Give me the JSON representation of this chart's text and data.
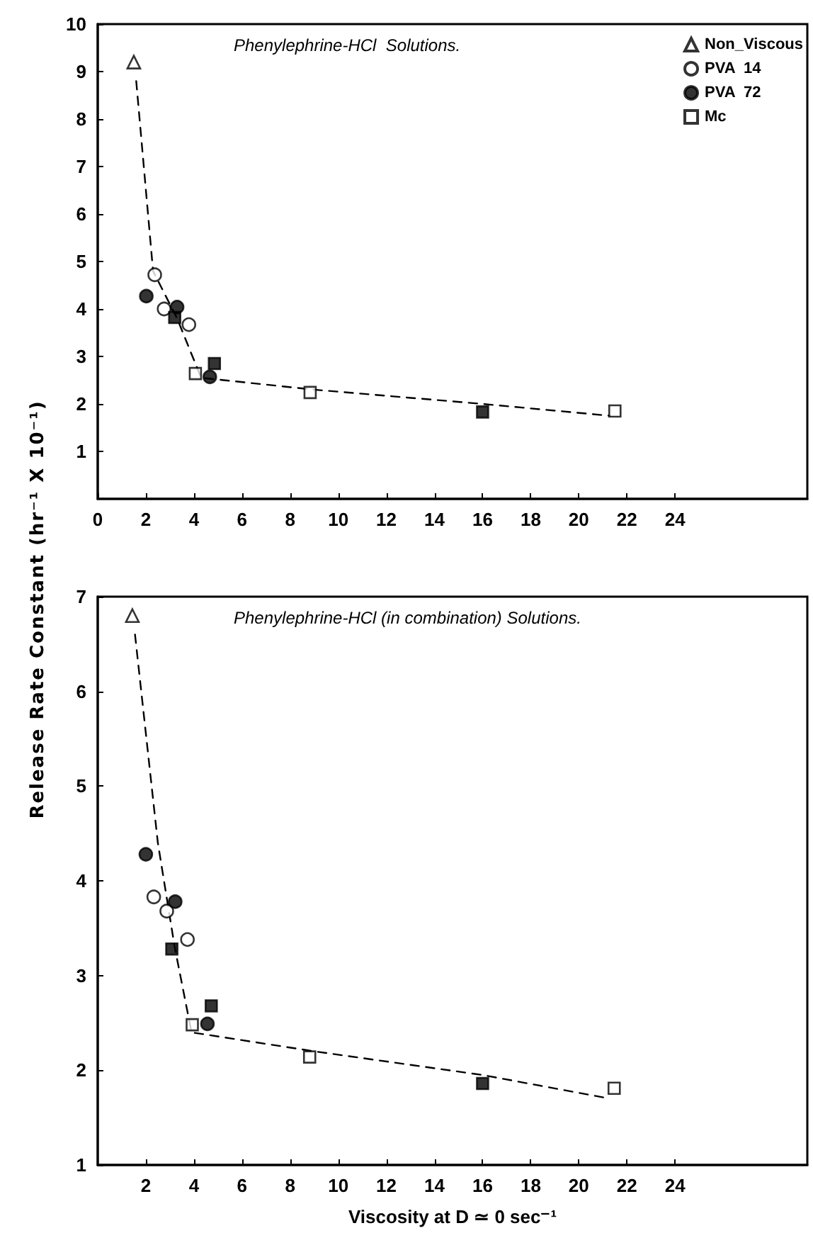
{
  "chart_data": [
    {
      "type": "scatter",
      "title": "Phenylephrine-HCl  Solutions.",
      "ylabel": "Release Rate Constant (hr⁻¹ X 10⁻¹)",
      "xlim": [
        0,
        29.5
      ],
      "xticks": [
        0,
        2,
        4,
        6,
        8,
        10,
        12,
        14,
        16,
        18,
        20,
        22,
        24
      ],
      "ylim": [
        0,
        10
      ],
      "yticks": [
        1,
        2,
        3,
        4,
        5,
        6,
        7,
        8,
        9,
        10
      ],
      "grid": false,
      "legend": "top right",
      "series": [
        {
          "name": "Non_Viscous",
          "color": "#ffffff",
          "marker": "triangle",
          "x": [
            1.5
          ],
          "values": [
            9.2
          ]
        },
        {
          "name": "PVA  14",
          "color": "#ffffff",
          "marker": "circle",
          "x": [
            2.37,
            2.76,
            3.79
          ],
          "values": [
            4.72,
            4.0,
            3.67
          ]
        },
        {
          "name": "PVA  72",
          "color": "#000000",
          "marker": "circle",
          "x": [
            2.02,
            3.3,
            4.66
          ],
          "values": [
            4.27,
            4.04,
            2.57
          ]
        },
        {
          "name": "Mc",
          "color": "#ffffff",
          "marker": "square",
          "x": [
            4.06,
            8.83,
            21.5
          ],
          "values": [
            2.64,
            2.24,
            1.85
          ]
        },
        {
          "color": "#000000",
          "marker": "square",
          "x": [
            3.2,
            4.85,
            16.0
          ],
          "values": [
            3.82,
            2.85,
            1.83
          ]
        },
        {
          "type": "line",
          "color": "#000000",
          "marker": "none",
          "line_style": "dashed",
          "x": [
            1.6,
            2.3,
            3.3,
            4.3,
            9,
            16,
            21.3
          ],
          "values": [
            8.8,
            4.8,
            3.8,
            2.55,
            2.3,
            2.0,
            1.75
          ]
        }
      ]
    },
    {
      "type": "scatter",
      "title": "Phenylephrine-HCl (in combination) Solutions.",
      "xlabel": "Viscosity at D ≃ 0 sec⁻¹",
      "xlim": [
        0,
        29.5
      ],
      "xticks": [
        2,
        4,
        6,
        8,
        10,
        12,
        14,
        16,
        18,
        20,
        22,
        24
      ],
      "ylim": [
        1,
        7
      ],
      "yticks": [
        1,
        2,
        3,
        4,
        5,
        6,
        7
      ],
      "grid": false,
      "series": [
        {
          "color": "#ffffff",
          "marker": "triangle",
          "x": [
            1.44
          ],
          "values": [
            6.8
          ]
        },
        {
          "color": "#ffffff",
          "marker": "circle",
          "x": [
            2.33,
            2.87,
            3.73
          ],
          "values": [
            3.83,
            3.68,
            3.38
          ]
        },
        {
          "color": "#000000",
          "marker": "circle",
          "x": [
            2.0,
            3.22,
            4.56
          ],
          "values": [
            4.28,
            3.78,
            2.49
          ]
        },
        {
          "color": "#ffffff",
          "marker": "square",
          "x": [
            3.93,
            8.81,
            21.47
          ],
          "values": [
            2.48,
            2.14,
            1.81
          ]
        },
        {
          "color": "#000000",
          "marker": "square",
          "x": [
            3.08,
            4.72,
            16.0
          ],
          "values": [
            3.28,
            2.68,
            1.86
          ]
        },
        {
          "type": "line",
          "color": "#000000",
          "marker": "none",
          "line_style": "dashed",
          "x": [
            1.55,
            2.5,
            3.2,
            3.9,
            9,
            16,
            21.3
          ],
          "values": [
            6.6,
            4.4,
            3.3,
            2.4,
            2.2,
            1.95,
            1.7
          ]
        }
      ]
    }
  ]
}
